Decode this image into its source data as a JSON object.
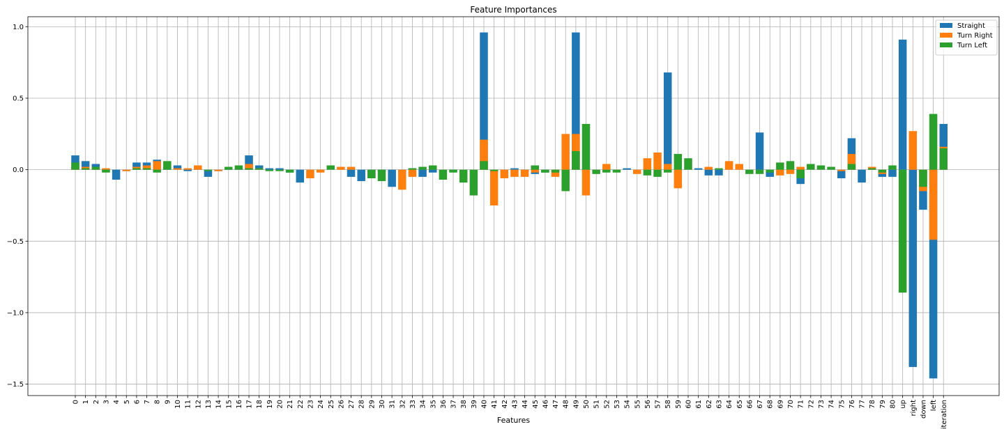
{
  "chart_data": {
    "type": "bar",
    "title": "Feature Importances",
    "xlabel": "Features",
    "ylabel": "",
    "ylim": [
      -1.58,
      1.07
    ],
    "yticks": [
      1.0,
      0.5,
      0.0,
      -0.5,
      -1.0,
      -1.5
    ],
    "ytick_labels": [
      "1.0",
      "0.5",
      "0.0",
      "−0.5",
      "−1.0",
      "−1.5"
    ],
    "grid": true,
    "legend_position": "top-right",
    "categories": [
      "0",
      "1",
      "2",
      "3",
      "4",
      "5",
      "6",
      "7",
      "8",
      "9",
      "10",
      "11",
      "12",
      "13",
      "14",
      "15",
      "16",
      "17",
      "18",
      "19",
      "20",
      "21",
      "22",
      "23",
      "24",
      "25",
      "26",
      "27",
      "28",
      "29",
      "30",
      "31",
      "32",
      "33",
      "34",
      "35",
      "36",
      "37",
      "38",
      "39",
      "40",
      "41",
      "42",
      "43",
      "44",
      "45",
      "46",
      "47",
      "48",
      "49",
      "50",
      "51",
      "52",
      "53",
      "54",
      "55",
      "56",
      "57",
      "58",
      "59",
      "60",
      "61",
      "62",
      "63",
      "64",
      "65",
      "66",
      "67",
      "68",
      "69",
      "70",
      "71",
      "72",
      "73",
      "74",
      "75",
      "76",
      "77",
      "78",
      "79",
      "80",
      "up",
      "right",
      "down",
      "left",
      "iteration"
    ],
    "series": [
      {
        "name": "Straight",
        "color": "#1f77b4",
        "values": [
          0.1,
          0.06,
          0.04,
          -0.01,
          -0.07,
          -0.01,
          0.05,
          0.05,
          0.07,
          0.02,
          0.03,
          -0.01,
          0.01,
          -0.05,
          -0.01,
          0.01,
          0.01,
          0.1,
          0.03,
          0.01,
          0.01,
          -0.02,
          -0.09,
          0.0,
          -0.01,
          0.0,
          0.0,
          -0.05,
          -0.08,
          -0.06,
          -0.01,
          -0.12,
          -0.02,
          0.01,
          -0.05,
          -0.02,
          0.0,
          -0.01,
          0.0,
          0.0,
          0.96,
          -0.01,
          -0.01,
          0.01,
          -0.01,
          -0.03,
          -0.02,
          0.0,
          0.0,
          0.96,
          0.01,
          0.0,
          0.01,
          0.0,
          0.01,
          0.0,
          0.0,
          0.0,
          0.68,
          0.0,
          0.0,
          0.01,
          -0.04,
          -0.04,
          0.0,
          0.0,
          0.0,
          0.26,
          -0.05,
          0.0,
          0.0,
          -0.1,
          0.0,
          0.0,
          0.0,
          -0.06,
          0.22,
          -0.09,
          0.0,
          -0.05,
          -0.05,
          0.91,
          -1.38,
          -0.28,
          -1.46,
          0.32
        ]
      },
      {
        "name": "Turn Right",
        "color": "#ff7f0e",
        "values": [
          0.01,
          0.02,
          0.01,
          0.01,
          0.0,
          -0.01,
          0.02,
          0.03,
          0.06,
          0.0,
          0.01,
          0.01,
          0.03,
          0.0,
          -0.01,
          0.0,
          0.0,
          0.04,
          0.01,
          0.0,
          0.0,
          0.0,
          0.0,
          -0.06,
          -0.02,
          0.0,
          0.02,
          0.02,
          0.0,
          0.0,
          0.0,
          0.0,
          -0.14,
          -0.05,
          0.0,
          0.0,
          0.0,
          0.0,
          0.0,
          0.0,
          0.21,
          -0.25,
          -0.06,
          -0.05,
          -0.05,
          -0.02,
          0.0,
          -0.05,
          0.25,
          0.25,
          -0.18,
          0.0,
          0.04,
          0.0,
          0.0,
          -0.03,
          0.08,
          0.12,
          0.04,
          -0.13,
          0.0,
          0.0,
          0.02,
          0.0,
          0.06,
          0.04,
          0.0,
          0.0,
          0.0,
          -0.04,
          -0.03,
          0.02,
          0.0,
          0.0,
          0.0,
          -0.01,
          0.11,
          0.0,
          0.02,
          -0.03,
          0.0,
          0.0,
          0.27,
          -0.15,
          -0.49,
          0.16
        ]
      },
      {
        "name": "Turn Left",
        "color": "#2ca02c",
        "values": [
          0.05,
          0.01,
          0.02,
          -0.02,
          0.0,
          0.0,
          0.01,
          0.01,
          -0.02,
          0.06,
          0.0,
          0.0,
          0.0,
          -0.01,
          0.0,
          0.02,
          0.03,
          0.01,
          0.01,
          -0.01,
          -0.01,
          -0.02,
          0.0,
          0.0,
          0.0,
          0.03,
          0.0,
          0.0,
          0.0,
          -0.06,
          -0.08,
          0.0,
          0.0,
          0.01,
          0.02,
          0.03,
          -0.07,
          -0.02,
          -0.09,
          -0.18,
          0.06,
          -0.01,
          0.0,
          0.0,
          0.0,
          0.03,
          -0.02,
          -0.02,
          -0.15,
          0.13,
          0.32,
          -0.03,
          -0.02,
          -0.02,
          0.0,
          0.0,
          -0.04,
          -0.05,
          -0.02,
          0.11,
          0.08,
          0.0,
          0.0,
          0.01,
          0.0,
          0.0,
          -0.03,
          -0.03,
          -0.02,
          0.05,
          0.06,
          -0.06,
          0.04,
          0.03,
          0.02,
          0.0,
          0.04,
          0.0,
          0.01,
          -0.02,
          0.03,
          -0.86,
          0.0,
          -0.12,
          0.39,
          0.15
        ]
      }
    ]
  }
}
